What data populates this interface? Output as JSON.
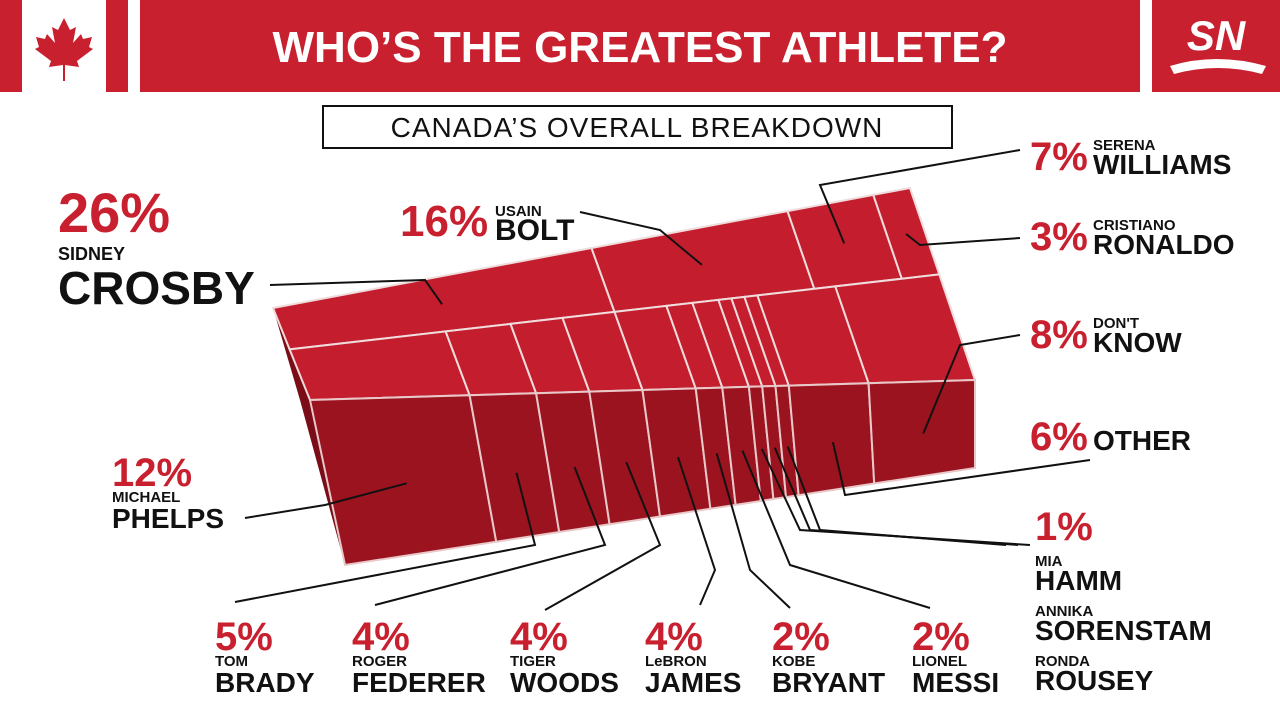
{
  "chart_data": {
    "type": "treemap",
    "title": "WHO’S THE GREATEST ATHLETE?",
    "subtitle": "CANADA’S OVERALL BREAKDOWN",
    "logo": "SN",
    "color": "#c41e2e",
    "items": [
      {
        "value": 26,
        "value_label": "26%",
        "first": "SIDNEY",
        "last": "CROSBY"
      },
      {
        "value": 16,
        "value_label": "16%",
        "first": "USAIN",
        "last": "BOLT"
      },
      {
        "value": 7,
        "value_label": "7%",
        "first": "SERENA",
        "last": "WILLIAMS"
      },
      {
        "value": 3,
        "value_label": "3%",
        "first": "CRISTIANO",
        "last": "RONALDO"
      },
      {
        "value": 12,
        "value_label": "12%",
        "first": "MICHAEL",
        "last": "PHELPS"
      },
      {
        "value": 5,
        "value_label": "5%",
        "first": "TOM",
        "last": "BRADY"
      },
      {
        "value": 4,
        "value_label": "4%",
        "first": "ROGER",
        "last": "FEDERER"
      },
      {
        "value": 4,
        "value_label": "4%",
        "first": "TIGER",
        "last": "WOODS"
      },
      {
        "value": 4,
        "value_label": "4%",
        "first": "LeBRON",
        "last": "JAMES"
      },
      {
        "value": 2,
        "value_label": "2%",
        "first": "KOBE",
        "last": "BRYANT"
      },
      {
        "value": 2,
        "value_label": "2%",
        "first": "LIONEL",
        "last": "MESSI"
      },
      {
        "value": 1,
        "value_label": "1%",
        "names": [
          {
            "first": "MIA",
            "last": "HAMM"
          },
          {
            "first": "ANNIKA",
            "last": "SORENSTAM"
          },
          {
            "first": "RONDA",
            "last": "ROUSEY"
          }
        ]
      },
      {
        "value": 6,
        "value_label": "6%",
        "last": "OTHER"
      },
      {
        "value": 8,
        "value_label": "8%",
        "first": "DON'T",
        "last": "KNOW"
      }
    ]
  }
}
